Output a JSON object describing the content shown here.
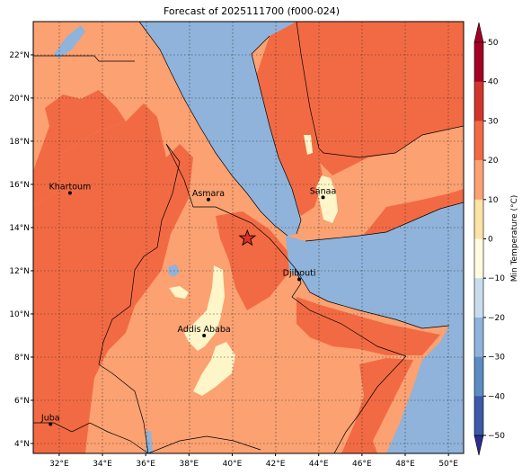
{
  "title": "Forecast of 2025111700 (f000-024)",
  "map": {
    "lon_ticks": [
      "32°E",
      "34°E",
      "36°E",
      "38°E",
      "40°E",
      "42°E",
      "44°E",
      "46°E",
      "48°E",
      "50°E"
    ],
    "lat_ticks": [
      "22°N",
      "20°N",
      "18°N",
      "16°N",
      "14°N",
      "12°N",
      "10°N",
      "8°N",
      "6°N",
      "4°N"
    ],
    "cities": [
      {
        "name": "Khartoum",
        "lon": 32.5,
        "lat": 15.6
      },
      {
        "name": "Asmara",
        "lon": 38.9,
        "lat": 15.3
      },
      {
        "name": "Sanaa",
        "lon": 44.2,
        "lat": 15.4
      },
      {
        "name": "Djibouti",
        "lon": 43.1,
        "lat": 11.6
      },
      {
        "name": "Addis Ababa",
        "lon": 38.7,
        "lat": 9.0
      },
      {
        "name": "Juba",
        "lon": 31.6,
        "lat": 4.9
      }
    ],
    "marker": {
      "name": "star-marker",
      "lon": 40.7,
      "lat": 13.5
    }
  },
  "colorbar": {
    "label": "Min Temperature (°C)",
    "ticks": [
      "50",
      "40",
      "30",
      "20",
      "10",
      "0",
      "−10",
      "−20",
      "−30",
      "−40",
      "−50"
    ],
    "colors": [
      "#2b2d8f",
      "#3b5aa8",
      "#5b8dc3",
      "#8fb3da",
      "#c7ddee",
      "#fffbe0",
      "#fde3a6",
      "#fba172",
      "#f26a43",
      "#d2352c",
      "#a50026"
    ]
  },
  "colors": {
    "land_warm": "#fba172",
    "land_hot": "#f26a43",
    "land_cool": "#fef5c9",
    "sea": "#8fb3da"
  }
}
